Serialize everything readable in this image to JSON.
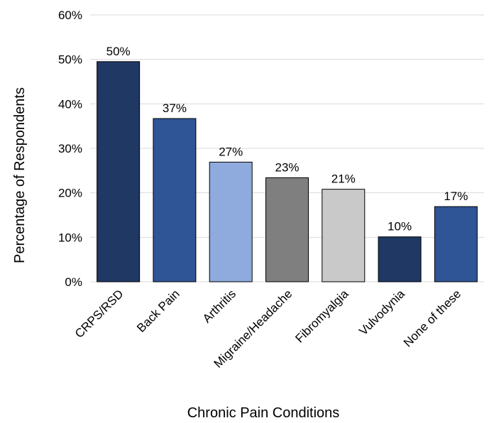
{
  "chart_data": {
    "type": "bar",
    "title": "",
    "xlabel": "Chronic Pain Conditions",
    "ylabel": "Percentage of Respondents",
    "ylim": [
      0,
      60
    ],
    "yticks": [
      0,
      10,
      20,
      30,
      40,
      50,
      60
    ],
    "ytick_labels": [
      "0%",
      "10%",
      "20%",
      "30%",
      "40%",
      "50%",
      "60%"
    ],
    "grid": true,
    "categories": [
      "CRPS/RSD",
      "Back Pain",
      "Arthritis",
      "Migraine/Headache",
      "Fibromyalgia",
      "Vulvodynia",
      "None of these"
    ],
    "values": [
      49.5,
      36.7,
      26.9,
      23.4,
      20.8,
      10.1,
      16.9
    ],
    "data_labels": [
      "50%",
      "37%",
      "27%",
      "23%",
      "21%",
      "10%",
      "17%"
    ],
    "colors": [
      "#203864",
      "#2F5597",
      "#8FAADC",
      "#7F7F7F",
      "#C9C9C9",
      "#203864",
      "#2F5597"
    ]
  }
}
